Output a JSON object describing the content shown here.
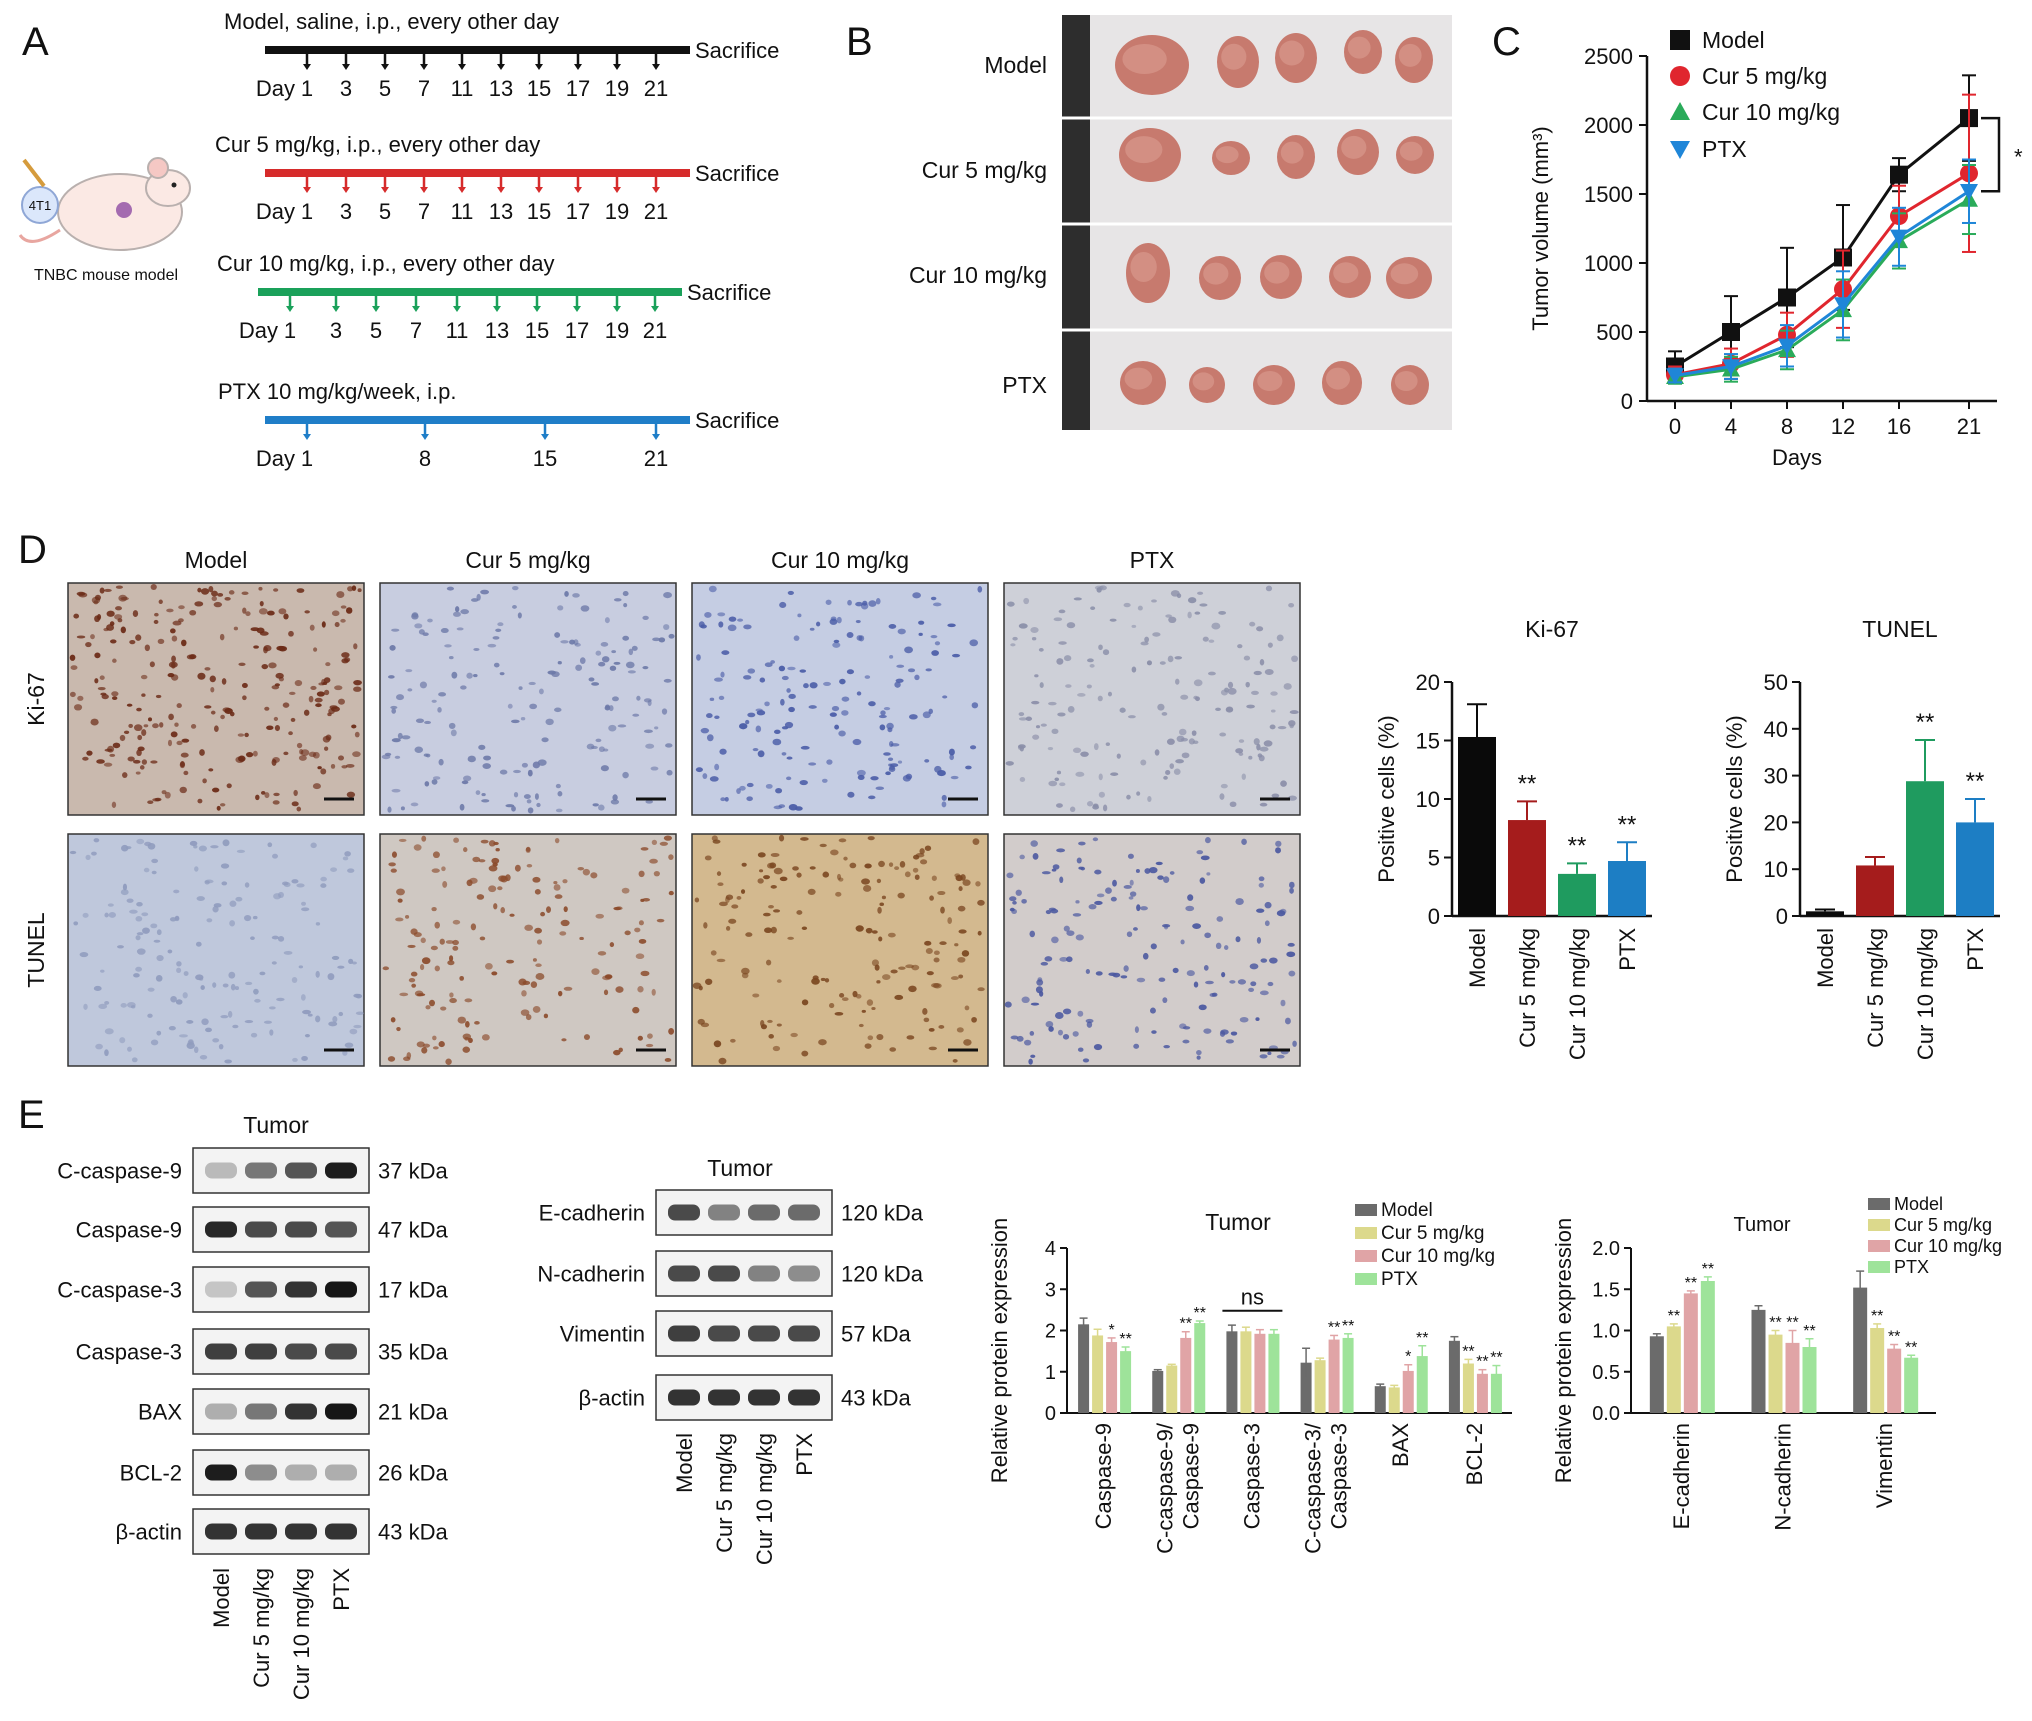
{
  "panel_letters": {
    "a": "A",
    "b": "B",
    "c": "C",
    "d": "D",
    "e": "E"
  },
  "panel_a": {
    "model_caption": "TNBC mouse model",
    "cell_line": "4T1",
    "sacrifice": "Sacrifice",
    "day_word": "Day",
    "schedules": [
      {
        "title": "Model, saline, i.p., every other day",
        "color": "#111111",
        "days": [
          "1",
          "3",
          "5",
          "7",
          "11",
          "13",
          "15",
          "17",
          "19",
          "21"
        ]
      },
      {
        "title": "Cur 5 mg/kg, i.p., every other day",
        "color": "#d62b2b",
        "days": [
          "1",
          "3",
          "5",
          "7",
          "11",
          "13",
          "15",
          "17",
          "19",
          "21"
        ]
      },
      {
        "title": "Cur 10 mg/kg, i.p., every other day",
        "color": "#1aa15a",
        "days": [
          "1",
          "3",
          "5",
          "7",
          "11",
          "13",
          "15",
          "17",
          "19",
          "21"
        ]
      },
      {
        "title": "PTX 10 mg/kg/week, i.p.",
        "color": "#1f7ec8",
        "days": [
          "1",
          "8",
          "15",
          "21"
        ]
      }
    ]
  },
  "panel_b": {
    "rows": [
      "Model",
      "Cur 5 mg/kg",
      "Cur 10 mg/kg",
      "PTX"
    ]
  },
  "chart_data": [
    {
      "id": "C",
      "type": "line",
      "xlabel": "Days",
      "ylabel": "Tumor volume (mm³)",
      "x": [
        0,
        4,
        8,
        12,
        16,
        21
      ],
      "ylim": [
        0,
        2500
      ],
      "yticks": [
        0,
        500,
        1000,
        1500,
        2000,
        2500
      ],
      "series": [
        {
          "name": "Model",
          "color": "#111111",
          "marker": "square",
          "values": [
            250,
            500,
            750,
            1040,
            1640,
            2050
          ],
          "err": [
            110,
            260,
            360,
            380,
            120,
            310
          ]
        },
        {
          "name": "Cur 5 mg/kg",
          "color": "#e0262e",
          "marker": "circle",
          "values": [
            190,
            270,
            480,
            810,
            1340,
            1650
          ],
          "err": [
            60,
            110,
            160,
            280,
            220,
            570
          ]
        },
        {
          "name": "Cur 10 mg/kg",
          "color": "#2aab5a",
          "marker": "triangle",
          "values": [
            175,
            230,
            370,
            660,
            1160,
            1460
          ],
          "err": [
            50,
            90,
            140,
            220,
            200,
            250
          ]
        },
        {
          "name": "PTX",
          "color": "#1f86d8",
          "marker": "triangle-down",
          "values": [
            185,
            250,
            400,
            700,
            1190,
            1520
          ],
          "err": [
            50,
            90,
            150,
            240,
            210,
            230
          ]
        }
      ],
      "annotation": "*"
    },
    {
      "id": "D-Ki67",
      "type": "bar",
      "title": "Ki-67",
      "ylabel": "Positive cells (%)",
      "categories": [
        "Model",
        "Cur 5 mg/kg",
        "Cur 10 mg/kg",
        "PTX"
      ],
      "values": [
        15.3,
        8.2,
        3.6,
        4.7
      ],
      "err": [
        2.8,
        1.6,
        0.9,
        1.6
      ],
      "ylim": [
        0,
        20
      ],
      "yticks": [
        0,
        5,
        10,
        15,
        20
      ],
      "colors": [
        "#0a0a0a",
        "#a51c1c",
        "#1f9b5f",
        "#1d7ec4"
      ],
      "sig": [
        "",
        "**",
        "**",
        "**"
      ]
    },
    {
      "id": "D-TUNEL",
      "type": "bar",
      "title": "TUNEL",
      "ylabel": "Positive cells (%)",
      "categories": [
        "Model",
        "Cur 5 mg/kg",
        "Cur 10 mg/kg",
        "PTX"
      ],
      "values": [
        1.0,
        10.8,
        28.8,
        20.0
      ],
      "err": [
        0.4,
        1.8,
        8.8,
        5.0
      ],
      "ylim": [
        0,
        50
      ],
      "yticks": [
        0,
        10,
        20,
        30,
        40,
        50
      ],
      "colors": [
        "#0a0a0a",
        "#a51c1c",
        "#1f9b5f",
        "#1d7ec4"
      ],
      "sig": [
        "",
        "",
        "**",
        "**"
      ]
    },
    {
      "id": "E-apoptosis",
      "type": "bar",
      "title": "Tumor",
      "ylabel": "Relative protein expression",
      "categories": [
        "Caspase-9",
        "C-caspase-9/\nCaspase-9",
        "Caspase-3",
        "C-caspase-3/\nCaspase-3",
        "BAX",
        "BCL-2"
      ],
      "series": [
        {
          "name": "Model",
          "color": "#6b6b6b",
          "values": [
            2.15,
            1.02,
            1.98,
            1.22,
            0.65,
            1.75
          ],
          "err": [
            0.15,
            0.03,
            0.15,
            0.35,
            0.05,
            0.1
          ]
        },
        {
          "name": "Cur 5 mg/kg",
          "color": "#dcd98c",
          "values": [
            1.88,
            1.15,
            1.98,
            1.28,
            0.62,
            1.2
          ],
          "err": [
            0.15,
            0.03,
            0.1,
            0.05,
            0.05,
            0.1
          ]
        },
        {
          "name": "Cur 10 mg/kg",
          "color": "#e0a4a6",
          "values": [
            1.72,
            1.82,
            1.92,
            1.78,
            1.02,
            0.95
          ],
          "err": [
            0.1,
            0.15,
            0.1,
            0.1,
            0.15,
            0.1
          ]
        },
        {
          "name": "PTX",
          "color": "#9ee39a",
          "values": [
            1.5,
            2.18,
            1.92,
            1.82,
            1.38,
            0.95
          ],
          "err": [
            0.1,
            0.05,
            0.1,
            0.1,
            0.25,
            0.2
          ]
        }
      ],
      "ylim": [
        0,
        4
      ],
      "yticks": [
        0,
        1,
        2,
        3,
        4
      ],
      "sig": [
        [
          "",
          "",
          "*",
          "**"
        ],
        [
          "",
          "",
          "**",
          "**"
        ],
        [
          "",
          "",
          "",
          ""
        ],
        [
          "",
          "",
          "**",
          "**"
        ],
        [
          "",
          "",
          "*",
          "**"
        ],
        [
          "",
          "**",
          "**",
          "**"
        ]
      ],
      "bracket": "ns"
    },
    {
      "id": "E-emt",
      "type": "bar",
      "title": "Tumor",
      "ylabel": "Relative protein expression",
      "categories": [
        "E-cadherin",
        "N-cadherin",
        "Vimentin"
      ],
      "series": [
        {
          "name": "Model",
          "color": "#6b6b6b",
          "values": [
            0.93,
            1.25,
            1.52
          ],
          "err": [
            0.03,
            0.05,
            0.2
          ]
        },
        {
          "name": "Cur 5 mg/kg",
          "color": "#dcd98c",
          "values": [
            1.05,
            0.95,
            1.03
          ],
          "err": [
            0.03,
            0.05,
            0.05
          ]
        },
        {
          "name": "Cur 10 mg/kg",
          "color": "#e0a4a6",
          "values": [
            1.45,
            0.85,
            0.78
          ],
          "err": [
            0.03,
            0.15,
            0.05
          ]
        },
        {
          "name": "PTX",
          "color": "#9ee39a",
          "values": [
            1.6,
            0.8,
            0.67
          ],
          "err": [
            0.05,
            0.1,
            0.03
          ]
        }
      ],
      "ylim": [
        0,
        2
      ],
      "yticks": [
        "0.0",
        "0.5",
        "1.0",
        "1.5",
        "2.0"
      ],
      "sig": [
        [
          "",
          "**",
          "**",
          "**"
        ],
        [
          "",
          "**",
          "**",
          "**"
        ],
        [
          "",
          "**",
          "**",
          "**"
        ]
      ]
    }
  ],
  "panel_d": {
    "columns": [
      "Model",
      "Cur 5 mg/kg",
      "Cur 10 mg/kg",
      "PTX"
    ],
    "rows": [
      "Ki-67",
      "TUNEL"
    ]
  },
  "panel_e": {
    "blot1": {
      "title": "Tumor",
      "rows": [
        {
          "name": "C-caspase-9",
          "kda": "37 kDa"
        },
        {
          "name": "Caspase-9",
          "kda": "47 kDa"
        },
        {
          "name": "C-caspase-3",
          "kda": "17 kDa"
        },
        {
          "name": "Caspase-3",
          "kda": "35 kDa"
        },
        {
          "name": "BAX",
          "kda": "21 kDa"
        },
        {
          "name": "BCL-2",
          "kda": "26 kDa"
        },
        {
          "name": "β-actin",
          "kda": "43 kDa"
        }
      ]
    },
    "blot2": {
      "title": "Tumor",
      "rows": [
        {
          "name": "E-cadherin",
          "kda": "120 kDa"
        },
        {
          "name": "N-cadherin",
          "kda": "120 kDa"
        },
        {
          "name": "Vimentin",
          "kda": "57 kDa"
        },
        {
          "name": "β-actin",
          "kda": "43 kDa"
        }
      ]
    },
    "lanes": [
      "Model",
      "Cur 5 mg/kg",
      "Cur 10 mg/kg",
      "PTX"
    ]
  }
}
